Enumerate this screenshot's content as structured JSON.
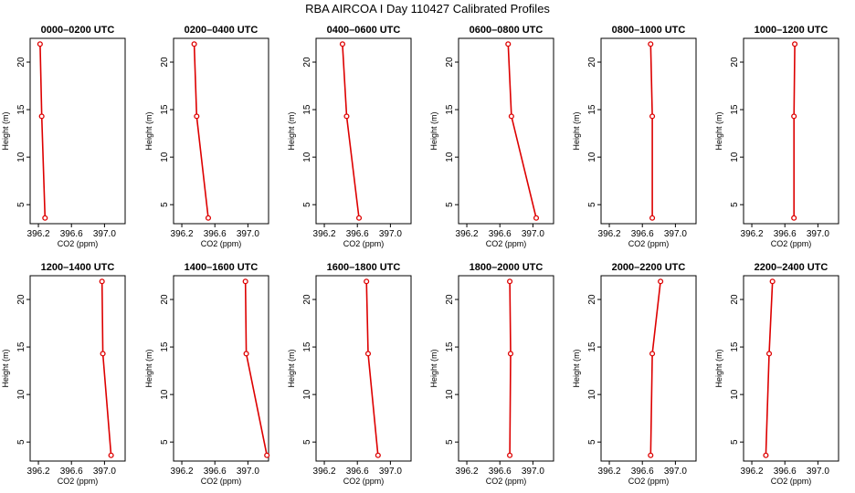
{
  "chart_data": {
    "title": "RBA AIRCOA I  Day 110427  Calibrated Profiles",
    "type": "line",
    "xlabel": "CO2 (ppm)",
    "ylabel": "Height (m)",
    "xlim": [
      396.1,
      397.25
    ],
    "ylim": [
      3.0,
      22.5
    ],
    "xticks": [
      396.2,
      396.6,
      397.0
    ],
    "xtick_labels": [
      "396.2",
      "396.6",
      "397.0"
    ],
    "yticks": [
      5,
      10,
      15,
      20
    ],
    "ytick_labels": [
      "5",
      "10",
      "15",
      "20"
    ],
    "line_color": "#dd0000",
    "panels": [
      {
        "title": "0000–0200 UTC",
        "x": [
          396.22,
          396.24,
          396.28
        ],
        "y": [
          21.9,
          14.3,
          3.6
        ]
      },
      {
        "title": "0200–0400 UTC",
        "x": [
          396.35,
          396.38,
          396.52
        ],
        "y": [
          21.9,
          14.3,
          3.6
        ]
      },
      {
        "title": "0400–0600 UTC",
        "x": [
          396.42,
          396.47,
          396.62
        ],
        "y": [
          21.9,
          14.3,
          3.6
        ]
      },
      {
        "title": "0600–0800 UTC",
        "x": [
          396.7,
          396.74,
          397.04
        ],
        "y": [
          21.9,
          14.3,
          3.6
        ]
      },
      {
        "title": "0800–1000 UTC",
        "x": [
          396.7,
          396.72,
          396.72
        ],
        "y": [
          21.9,
          14.3,
          3.6
        ]
      },
      {
        "title": "1000–1200 UTC",
        "x": [
          396.72,
          396.71,
          396.71
        ],
        "y": [
          21.9,
          14.3,
          3.6
        ]
      },
      {
        "title": "1200–1400 UTC",
        "x": [
          396.97,
          396.98,
          397.08
        ],
        "y": [
          21.9,
          14.3,
          3.6
        ]
      },
      {
        "title": "1400–1600 UTC",
        "x": [
          396.97,
          396.98,
          397.23
        ],
        "y": [
          21.9,
          14.3,
          3.6
        ]
      },
      {
        "title": "1600–1800 UTC",
        "x": [
          396.71,
          396.73,
          396.85
        ],
        "y": [
          21.9,
          14.3,
          3.6
        ]
      },
      {
        "title": "1800–2000 UTC",
        "x": [
          396.72,
          396.73,
          396.72
        ],
        "y": [
          21.9,
          14.3,
          3.6
        ]
      },
      {
        "title": "2000–2200 UTC",
        "x": [
          396.82,
          396.72,
          396.7
        ],
        "y": [
          21.9,
          14.3,
          3.6
        ]
      },
      {
        "title": "2200–2400 UTC",
        "x": [
          396.45,
          396.41,
          396.37
        ],
        "y": [
          21.9,
          14.3,
          3.6
        ]
      }
    ]
  }
}
